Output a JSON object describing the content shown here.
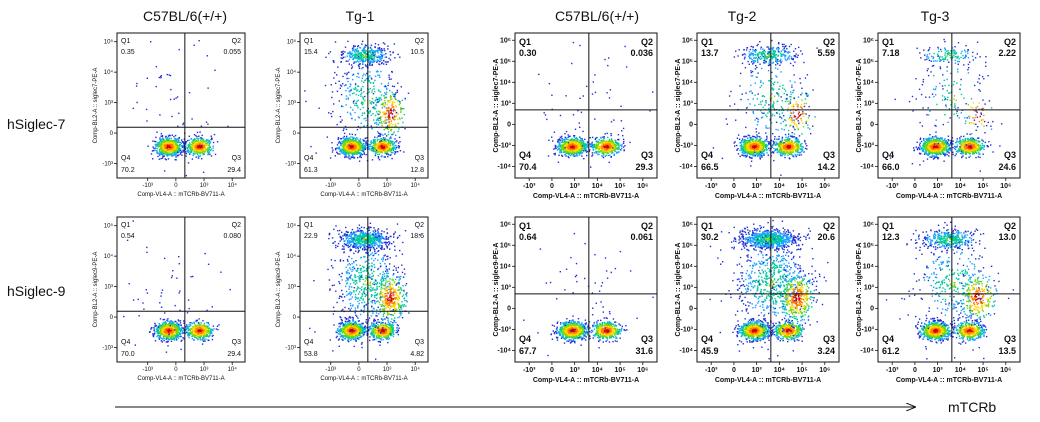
{
  "column_titles": [
    "C57BL/6(+/+)",
    "Tg-1",
    "C57BL/6(+/+)",
    "Tg-2",
    "Tg-3"
  ],
  "row_labels": [
    "hSiglec-7",
    "hSiglec-9"
  ],
  "x_axis_caption": "mTCRb",
  "chart_data": [
    {
      "type": "scatter",
      "row": "hSiglec-7",
      "column": "C57BL/6(+/+)",
      "xlabel": "Comp-VL4-A :: mTCRb-BV711-A",
      "ylabel": "Comp-BL2-A :: siglec7-PE-A",
      "quadrants": {
        "Q1": "0.35",
        "Q2": "0.055",
        "Q3": "29.4",
        "Q4": "70.2"
      },
      "xticks": [
        "-10³",
        "0",
        "10³",
        "10⁴"
      ],
      "yticks": [
        "10⁵",
        "10⁴",
        "10³",
        "0",
        "-10³"
      ]
    },
    {
      "type": "scatter",
      "row": "hSiglec-7",
      "column": "Tg-1",
      "xlabel": "Comp-VL4-A :: mTCRb-BV711-A",
      "ylabel": "Comp-BL2-A :: siglec7-PE-A",
      "quadrants": {
        "Q1": "15.4",
        "Q2": "10.5",
        "Q3": "12.8",
        "Q4": "61.3"
      },
      "xticks": [
        "-10³",
        "0",
        "10³",
        "10⁴"
      ],
      "yticks": [
        "10⁵",
        "10⁴",
        "10³",
        "0",
        "-10³"
      ]
    },
    {
      "type": "scatter",
      "row": "hSiglec-7",
      "column": "C57BL/6(+/+)",
      "xlabel": "Comp-VL4-A :: mTCRb-BV711-A",
      "ylabel": "Comp-BL2-A :: siglec7-PE-A",
      "quadrants": {
        "Q1": "0.30",
        "Q2": "0.036",
        "Q3": "29.3",
        "Q4": "70.4"
      },
      "xticks": [
        "-10³",
        "0",
        "10³",
        "10⁴",
        "10⁵",
        "10⁶"
      ],
      "yticks": [
        "10⁶",
        "10⁵",
        "10⁴",
        "10³",
        "0",
        "-10³",
        "-10⁴"
      ]
    },
    {
      "type": "scatter",
      "row": "hSiglec-7",
      "column": "Tg-2",
      "xlabel": "Comp-VL4-A :: mTCRb-BV711-A",
      "ylabel": "Comp-BL2-A :: siglec7-PE-A",
      "quadrants": {
        "Q1": "13.7",
        "Q2": "5.59",
        "Q3": "14.2",
        "Q4": "66.5"
      },
      "xticks": [
        "-10³",
        "0",
        "10³",
        "10⁴",
        "10⁵",
        "10⁶"
      ],
      "yticks": [
        "10⁶",
        "10⁵",
        "10⁴",
        "10³",
        "0",
        "-10³",
        "-10⁴"
      ]
    },
    {
      "type": "scatter",
      "row": "hSiglec-7",
      "column": "Tg-3",
      "xlabel": "Comp-VL4-A :: mTCRb-BV711-A",
      "ylabel": "Comp-BL2-A :: siglec7-PE-A",
      "quadrants": {
        "Q1": "7.18",
        "Q2": "2.22",
        "Q3": "24.6",
        "Q4": "66.0"
      },
      "xticks": [
        "-10³",
        "0",
        "10³",
        "10⁴",
        "10⁵",
        "10⁶"
      ],
      "yticks": [
        "10⁶",
        "10⁵",
        "10⁴",
        "10³",
        "0",
        "-10³",
        "-10⁴"
      ]
    },
    {
      "type": "scatter",
      "row": "hSiglec-9",
      "column": "C57BL/6(+/+)",
      "xlabel": "Comp-VL4-A :: mTCRb-BV711-A",
      "ylabel": "Comp-BL2-A :: siglec9-PE-A",
      "quadrants": {
        "Q1": "0.54",
        "Q2": "0.080",
        "Q3": "29.4",
        "Q4": "70.0"
      },
      "xticks": [
        "-10³",
        "0",
        "10³",
        "10⁴"
      ],
      "yticks": [
        "10⁵",
        "10⁴",
        "10³",
        "0",
        "-10³"
      ]
    },
    {
      "type": "scatter",
      "row": "hSiglec-9",
      "column": "Tg-1",
      "xlabel": "Comp-VL4-A :: mTCRb-BV711-A",
      "ylabel": "Comp-BL2-A :: siglec9-PE-A",
      "quadrants": {
        "Q1": "22.9",
        "Q2": "18.6",
        "Q3": "4.82",
        "Q4": "53.8"
      },
      "xticks": [
        "-10³",
        "0",
        "10³",
        "10⁴"
      ],
      "yticks": [
        "10⁵",
        "10⁴",
        "10³",
        "0",
        "-10³"
      ]
    },
    {
      "type": "scatter",
      "row": "hSiglec-9",
      "column": "C57BL/6(+/+)",
      "xlabel": "Comp-VL4-A :: mTCRb-BV711-A",
      "ylabel": "Comp-BL2-A :: siglec9-PE-A",
      "quadrants": {
        "Q1": "0.64",
        "Q2": "0.061",
        "Q3": "31.6",
        "Q4": "67.7"
      },
      "xticks": [
        "-10³",
        "0",
        "10³",
        "10⁴",
        "10⁵",
        "10⁶"
      ],
      "yticks": [
        "10⁶",
        "10⁵",
        "10⁴",
        "10³",
        "0",
        "-10³",
        "-10⁴"
      ]
    },
    {
      "type": "scatter",
      "row": "hSiglec-9",
      "column": "Tg-2",
      "xlabel": "Comp-VL4-A :: mTCRb-BV711-A",
      "ylabel": "Comp-BL2-A :: siglec9-PE-A",
      "quadrants": {
        "Q1": "30.2",
        "Q2": "20.6",
        "Q3": "3.24",
        "Q4": "45.9"
      },
      "xticks": [
        "-10³",
        "0",
        "10³",
        "10⁴",
        "10⁵",
        "10⁶"
      ],
      "yticks": [
        "10⁶",
        "10⁵",
        "10⁴",
        "10³",
        "0",
        "-10³",
        "-10⁴"
      ]
    },
    {
      "type": "scatter",
      "row": "hSiglec-9",
      "column": "Tg-3",
      "xlabel": "Comp-VL4-A :: mTCRb-BV711-A",
      "ylabel": "Comp-BL2-A :: siglec9-PE-A",
      "quadrants": {
        "Q1": "12.3",
        "Q2": "13.0",
        "Q3": "13.5",
        "Q4": "61.2"
      },
      "xticks": [
        "-10³",
        "0",
        "10³",
        "10⁴",
        "10⁵",
        "10⁶"
      ],
      "yticks": [
        "10⁶",
        "10⁵",
        "10⁴",
        "10³",
        "0",
        "-10³",
        "-10⁴"
      ]
    }
  ]
}
